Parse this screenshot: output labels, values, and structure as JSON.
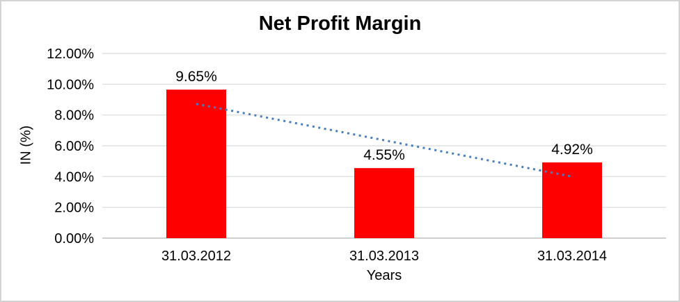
{
  "chart_data": {
    "type": "bar",
    "title": "Net Profit Margin",
    "xlabel": "Years",
    "ylabel": "IN (%)",
    "categories": [
      "31.03.2012",
      "31.03.2013",
      "31.03.2014"
    ],
    "values": [
      9.65,
      4.55,
      4.92
    ],
    "data_labels": [
      "9.65%",
      "4.55%",
      "4.92%"
    ],
    "ylim": [
      0,
      12
    ],
    "ytick_step": 2,
    "ytick_labels": [
      "0.00%",
      "2.00%",
      "4.00%",
      "6.00%",
      "8.00%",
      "10.00%",
      "12.00%"
    ],
    "grid": true,
    "legend": "none",
    "bar_color": "#FF0000",
    "gridline_color": "#D9D9D9",
    "axis_line_color": "#BFBFBF",
    "text_color": "#000000",
    "trendline": {
      "type": "linear",
      "style": "dotted",
      "color": "#4A7EBB",
      "start_value": 8.72,
      "end_value": 4.0
    }
  }
}
